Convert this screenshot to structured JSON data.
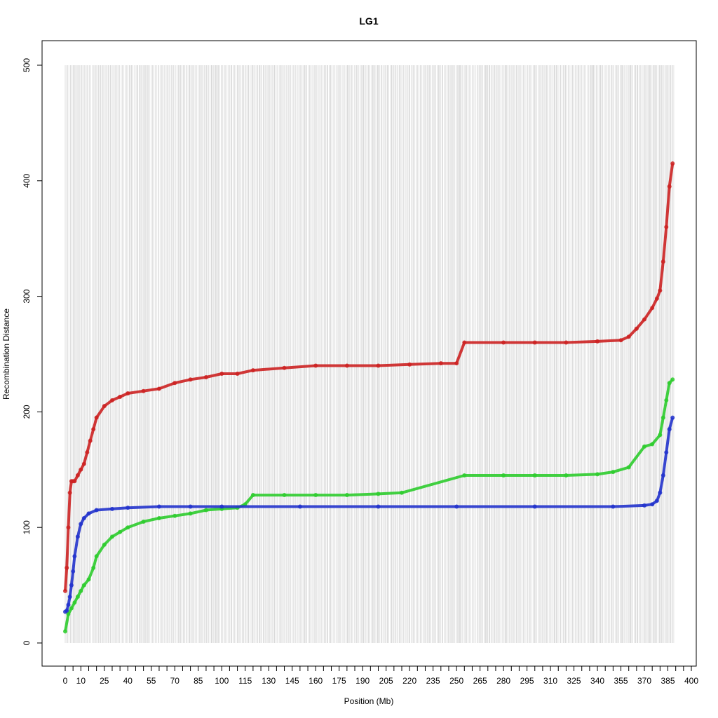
{
  "chart_data": {
    "type": "scatter",
    "title": "LG1",
    "xlabel": "Position (Mb)",
    "ylabel": "Recombination Distance",
    "xlim": [
      -4,
      402
    ],
    "ylim": [
      -20,
      520
    ],
    "x_ticks": [
      0,
      5,
      10,
      15,
      20,
      25,
      30,
      35,
      40,
      45,
      50,
      55,
      60,
      65,
      70,
      75,
      80,
      85,
      90,
      95,
      100,
      105,
      110,
      115,
      120,
      125,
      130,
      135,
      140,
      145,
      150,
      155,
      160,
      165,
      170,
      175,
      180,
      185,
      190,
      195,
      200,
      205,
      210,
      215,
      220,
      225,
      230,
      235,
      240,
      245,
      250,
      255,
      260,
      265,
      270,
      275,
      280,
      285,
      290,
      295,
      300,
      305,
      310,
      315,
      320,
      325,
      330,
      335,
      340,
      345,
      350,
      355,
      360,
      365,
      370,
      375,
      380,
      385,
      390,
      395,
      400
    ],
    "x_tick_labels": [
      "0",
      "10",
      "25",
      "40",
      "55",
      "70",
      "85",
      "100",
      "115",
      "130",
      "145",
      "160",
      "175",
      "190",
      "205",
      "220",
      "235",
      "250",
      "265",
      "280",
      "295",
      "310",
      "325",
      "340",
      "355",
      "370",
      "385",
      "400"
    ],
    "x_tick_label_values": [
      0,
      10,
      25,
      40,
      55,
      70,
      85,
      100,
      115,
      130,
      145,
      160,
      175,
      190,
      205,
      220,
      235,
      250,
      265,
      280,
      295,
      310,
      325,
      340,
      355,
      370,
      385,
      400
    ],
    "y_ticks": [
      0,
      100,
      200,
      300,
      400,
      500
    ],
    "y_tick_labels": [
      "0",
      "100",
      "200",
      "300",
      "400",
      "500"
    ],
    "marker_lines": {
      "x_range": [
        0,
        389
      ],
      "y_range": [
        0,
        500
      ],
      "color": "#bdbdbd"
    },
    "series": [
      {
        "color": "#cc2222",
        "x": [
          0,
          1,
          2,
          3,
          4,
          5,
          6,
          8,
          10,
          12,
          14,
          16,
          18,
          20,
          25,
          30,
          35,
          40,
          50,
          60,
          70,
          80,
          90,
          100,
          110,
          120,
          140,
          160,
          180,
          200,
          220,
          240,
          250,
          255,
          280,
          300,
          320,
          340,
          355,
          360,
          365,
          370,
          375,
          378,
          380,
          382,
          384,
          386,
          388
        ],
        "y": [
          45,
          65,
          100,
          130,
          140,
          140,
          140,
          145,
          150,
          155,
          165,
          175,
          185,
          195,
          205,
          210,
          213,
          216,
          218,
          220,
          225,
          228,
          230,
          233,
          233,
          236,
          238,
          240,
          240,
          240,
          241,
          242,
          242,
          260,
          260,
          260,
          260,
          261,
          262,
          265,
          272,
          280,
          290,
          298,
          305,
          330,
          360,
          395,
          415
        ]
      },
      {
        "color": "#2ecc2e",
        "x": [
          0,
          2,
          4,
          6,
          8,
          10,
          12,
          15,
          18,
          20,
          25,
          30,
          35,
          40,
          50,
          60,
          70,
          80,
          90,
          100,
          110,
          115,
          120,
          140,
          160,
          180,
          200,
          215,
          255,
          280,
          300,
          320,
          340,
          350,
          360,
          370,
          375,
          380,
          382,
          384,
          386,
          388
        ],
        "y": [
          10,
          25,
          30,
          35,
          40,
          45,
          50,
          55,
          65,
          75,
          85,
          92,
          96,
          100,
          105,
          108,
          110,
          112,
          115,
          116,
          117,
          120,
          128,
          128,
          128,
          128,
          129,
          130,
          145,
          145,
          145,
          145,
          146,
          148,
          152,
          170,
          172,
          180,
          195,
          210,
          225,
          228
        ]
      },
      {
        "color": "#2233cc",
        "x": [
          0,
          1,
          2,
          3,
          4,
          5,
          6,
          8,
          10,
          12,
          15,
          20,
          30,
          40,
          60,
          80,
          100,
          150,
          200,
          250,
          300,
          350,
          370,
          375,
          378,
          380,
          382,
          384,
          386,
          388
        ],
        "y": [
          27,
          28,
          33,
          40,
          50,
          62,
          75,
          92,
          103,
          108,
          112,
          115,
          116,
          117,
          118,
          118,
          118,
          118,
          118,
          118,
          118,
          118,
          119,
          120,
          123,
          130,
          145,
          165,
          185,
          195
        ]
      }
    ],
    "grid": false,
    "legend": "none"
  }
}
